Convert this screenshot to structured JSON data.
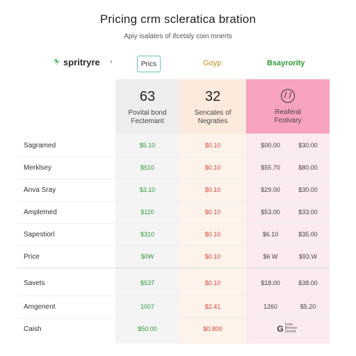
{
  "header": {
    "title": "Pricing crm scleratica bration",
    "subtitle": "Apiy isalates of ifcetaly coin mnerts"
  },
  "brand": {
    "logo_text": "spritryre",
    "chevron": "›",
    "tabs": [
      "Prics",
      "Goyp",
      "Bsayrority"
    ]
  },
  "plans": [
    {
      "number": "63",
      "label_line1": "Povital bond",
      "label_line2": "Fectemant"
    },
    {
      "number": "32",
      "label_line1": "Sencates of",
      "label_line2": "Negraties"
    },
    {
      "icon": "clock-icon",
      "label_line1": "Reaferal",
      "label_line2": "Feotvary"
    }
  ],
  "rows": [
    {
      "name": "Sagramed",
      "c1": "$5.10",
      "c2": "$0.10",
      "c3a": "$00.00",
      "c3b": "$30.00"
    },
    {
      "name": "Merklsey",
      "c1": "$510",
      "c2": "$0.10",
      "c3a": "$55.70",
      "c3b": "$80.00"
    },
    {
      "name": "Anva Sray",
      "c1": "$3.10",
      "c2": "$0.10",
      "c3a": "$29.00",
      "c3b": "$30.00"
    },
    {
      "name": "Amplemed",
      "c1": "$110",
      "c2": "$0.10",
      "c3a": "$53.00",
      "c3b": "$33.00"
    },
    {
      "name": "Sapestiorl",
      "c1": "$310",
      "c2": "$0.10",
      "c3a": "$6.10",
      "c3b": "$35.00"
    },
    {
      "name": "Price",
      "c1": "$0W",
      "c2": "$0.10",
      "c3a": "$6 W",
      "c3b": "$93.W"
    },
    {
      "name": "Savets",
      "c1": "$537",
      "c2": "$0.10",
      "c3a": "$18.00",
      "c3b": "$38.00"
    },
    {
      "name": "Amgenent",
      "c1": "1007",
      "c2": "$2.41",
      "c3a": "1260",
      "c3b": "$5.20"
    },
    {
      "name": "Caish",
      "c1": "$50.00",
      "c2": "$0.800",
      "c3_icon_letter": "G",
      "c3_icon_text": "Ferie Bremon Sorasit"
    }
  ],
  "colors": {
    "col1_bg": "#f3f3f3",
    "col2_bg": "#fdf3ea",
    "col3_bg": "#fbeaf0",
    "col3_header": "#f7a3bd",
    "green": "#2e9a3a",
    "red": "#d9453a",
    "accent_teal": "#5ec3c0"
  }
}
